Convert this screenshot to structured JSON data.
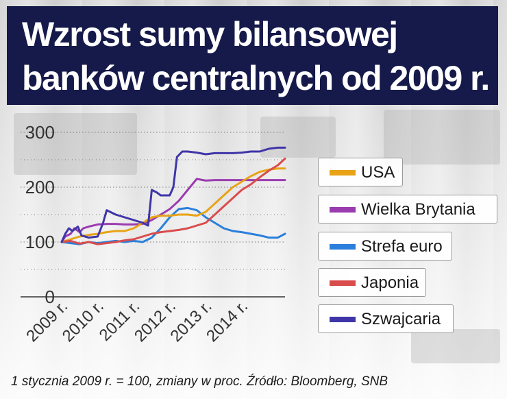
{
  "title": {
    "line1": "Wzrost sumy bilansowej",
    "line2": "banków centralnych od 2009 r."
  },
  "footnote": "1 stycznia 2009 r. = 100, zmiany w proc. Źródło: Bloomberg, SNB",
  "chart_data": {
    "type": "line",
    "title": "Wzrost sumy bilansowej banków centralnych od 2009 r.",
    "xlabel": "",
    "ylabel": "",
    "ylim": [
      0,
      300
    ],
    "yticks": [
      0,
      100,
      200,
      300
    ],
    "xticks": [
      "2009 r.",
      "2010 r.",
      "2011 r.",
      "2012 r.",
      "2013 r.",
      "2014 r."
    ],
    "xlim": [
      2009.0,
      2015.2
    ],
    "grid": "horizontal dotted",
    "legend_position": "right",
    "series": [
      {
        "name": "USA",
        "color": "#e8a317",
        "points": [
          [
            2009.0,
            100
          ],
          [
            2009.25,
            105
          ],
          [
            2009.5,
            110
          ],
          [
            2009.75,
            113
          ],
          [
            2010.0,
            115
          ],
          [
            2010.25,
            118
          ],
          [
            2010.5,
            120
          ],
          [
            2010.75,
            120
          ],
          [
            2011.0,
            125
          ],
          [
            2011.25,
            135
          ],
          [
            2011.5,
            145
          ],
          [
            2011.75,
            148
          ],
          [
            2012.0,
            148
          ],
          [
            2012.25,
            150
          ],
          [
            2012.5,
            150
          ],
          [
            2012.75,
            148
          ],
          [
            2013.0,
            155
          ],
          [
            2013.25,
            170
          ],
          [
            2013.5,
            185
          ],
          [
            2013.75,
            200
          ],
          [
            2014.0,
            210
          ],
          [
            2014.25,
            220
          ],
          [
            2014.5,
            228
          ],
          [
            2014.75,
            232
          ],
          [
            2015.0,
            234
          ],
          [
            2015.2,
            234
          ]
        ]
      },
      {
        "name": "Wielka Brytania",
        "color": "#9b3bb0",
        "points": [
          [
            2009.0,
            100
          ],
          [
            2009.1,
            110
          ],
          [
            2009.25,
            115
          ],
          [
            2009.35,
            125
          ],
          [
            2009.5,
            118
          ],
          [
            2009.6,
            125
          ],
          [
            2009.75,
            128
          ],
          [
            2010.0,
            132
          ],
          [
            2010.25,
            133
          ],
          [
            2010.5,
            133
          ],
          [
            2010.75,
            132
          ],
          [
            2011.0,
            132
          ],
          [
            2011.25,
            133
          ],
          [
            2011.5,
            140
          ],
          [
            2011.75,
            150
          ],
          [
            2012.0,
            160
          ],
          [
            2012.25,
            175
          ],
          [
            2012.5,
            195
          ],
          [
            2012.75,
            215
          ],
          [
            2013.0,
            212
          ],
          [
            2013.25,
            213
          ],
          [
            2013.5,
            213
          ],
          [
            2013.75,
            213
          ],
          [
            2014.0,
            213
          ],
          [
            2014.5,
            213
          ],
          [
            2015.0,
            213
          ],
          [
            2015.2,
            213
          ]
        ]
      },
      {
        "name": "Strefa euro",
        "color": "#2a7fdc",
        "points": [
          [
            2009.0,
            100
          ],
          [
            2009.25,
            98
          ],
          [
            2009.5,
            96
          ],
          [
            2009.75,
            100
          ],
          [
            2010.0,
            98
          ],
          [
            2010.25,
            100
          ],
          [
            2010.5,
            102
          ],
          [
            2010.75,
            100
          ],
          [
            2011.0,
            102
          ],
          [
            2011.25,
            100
          ],
          [
            2011.5,
            108
          ],
          [
            2011.75,
            125
          ],
          [
            2012.0,
            145
          ],
          [
            2012.25,
            160
          ],
          [
            2012.5,
            162
          ],
          [
            2012.75,
            158
          ],
          [
            2013.0,
            145
          ],
          [
            2013.25,
            135
          ],
          [
            2013.5,
            125
          ],
          [
            2013.75,
            120
          ],
          [
            2014.0,
            118
          ],
          [
            2014.25,
            115
          ],
          [
            2014.5,
            112
          ],
          [
            2014.75,
            108
          ],
          [
            2015.0,
            108
          ],
          [
            2015.2,
            115
          ]
        ]
      },
      {
        "name": "Japonia",
        "color": "#d94c4c",
        "points": [
          [
            2009.0,
            100
          ],
          [
            2009.25,
            102
          ],
          [
            2009.5,
            97
          ],
          [
            2009.75,
            100
          ],
          [
            2010.0,
            96
          ],
          [
            2010.25,
            98
          ],
          [
            2010.5,
            100
          ],
          [
            2010.75,
            103
          ],
          [
            2011.0,
            105
          ],
          [
            2011.25,
            110
          ],
          [
            2011.5,
            115
          ],
          [
            2011.75,
            118
          ],
          [
            2012.0,
            120
          ],
          [
            2012.25,
            122
          ],
          [
            2012.5,
            125
          ],
          [
            2012.75,
            130
          ],
          [
            2013.0,
            135
          ],
          [
            2013.25,
            150
          ],
          [
            2013.5,
            165
          ],
          [
            2013.75,
            180
          ],
          [
            2014.0,
            195
          ],
          [
            2014.25,
            205
          ],
          [
            2014.5,
            218
          ],
          [
            2014.75,
            230
          ],
          [
            2015.0,
            240
          ],
          [
            2015.2,
            252
          ]
        ]
      },
      {
        "name": "Szwajcaria",
        "color": "#3f35a8",
        "points": [
          [
            2009.0,
            100
          ],
          [
            2009.1,
            115
          ],
          [
            2009.2,
            125
          ],
          [
            2009.3,
            120
          ],
          [
            2009.45,
            128
          ],
          [
            2009.55,
            112
          ],
          [
            2009.75,
            108
          ],
          [
            2010.0,
            110
          ],
          [
            2010.15,
            135
          ],
          [
            2010.25,
            158
          ],
          [
            2010.5,
            150
          ],
          [
            2010.75,
            145
          ],
          [
            2011.0,
            140
          ],
          [
            2011.25,
            135
          ],
          [
            2011.4,
            130
          ],
          [
            2011.5,
            195
          ],
          [
            2011.65,
            190
          ],
          [
            2011.75,
            185
          ],
          [
            2012.0,
            185
          ],
          [
            2012.1,
            200
          ],
          [
            2012.2,
            255
          ],
          [
            2012.35,
            265
          ],
          [
            2012.5,
            265
          ],
          [
            2012.75,
            263
          ],
          [
            2013.0,
            260
          ],
          [
            2013.25,
            262
          ],
          [
            2013.5,
            262
          ],
          [
            2013.75,
            262
          ],
          [
            2014.0,
            263
          ],
          [
            2014.25,
            265
          ],
          [
            2014.5,
            265
          ],
          [
            2014.75,
            270
          ],
          [
            2015.0,
            272
          ],
          [
            2015.2,
            272
          ]
        ]
      }
    ]
  }
}
